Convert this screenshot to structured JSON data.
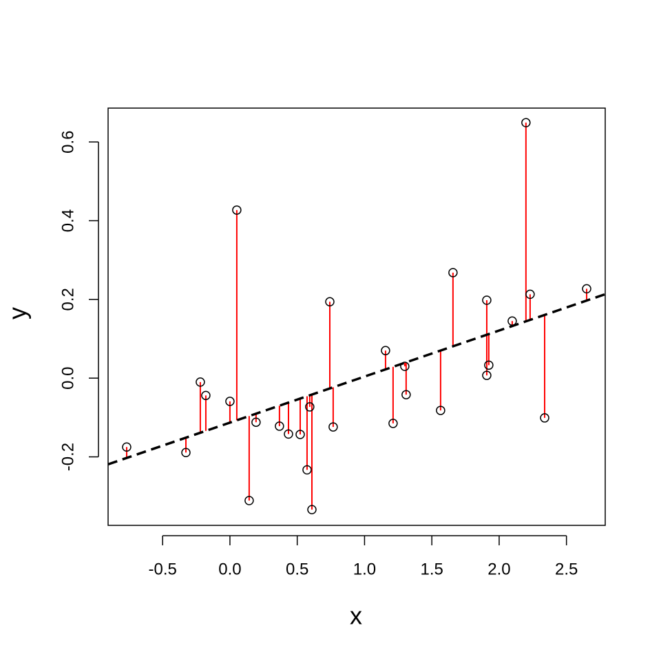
{
  "chart_data": {
    "type": "scatter",
    "x_label": "x",
    "y_label": "y",
    "x": [
      -0.767,
      -0.327,
      -0.22,
      -0.179,
      0.0,
      0.051,
      0.143,
      0.194,
      0.368,
      0.435,
      0.522,
      0.573,
      0.593,
      0.609,
      0.742,
      0.767,
      1.156,
      1.212,
      1.299,
      1.309,
      1.565,
      1.657,
      1.908,
      1.908,
      1.923,
      2.097,
      2.199,
      2.23,
      2.338,
      2.65
    ],
    "values": [
      -0.175,
      -0.189,
      -0.01,
      -0.044,
      -0.059,
      0.427,
      -0.311,
      -0.112,
      -0.122,
      -0.142,
      -0.143,
      -0.233,
      -0.073,
      -0.334,
      0.194,
      -0.124,
      0.07,
      -0.115,
      0.03,
      -0.042,
      -0.082,
      0.268,
      0.198,
      0.007,
      0.033,
      0.145,
      0.649,
      0.213,
      -0.101,
      0.227
    ],
    "color": "#000000",
    "fit": {
      "intercept": -0.113,
      "slope": 0.117,
      "color": "#000000",
      "dashed": true
    },
    "residual_color": "#ff0000",
    "xlim": [
      -0.905,
      2.788
    ],
    "ylim": [
      -0.374,
      0.686
    ],
    "xticks": [
      -0.5,
      {
        "value": 0,
        "label": "0.0"
      },
      0.5,
      {
        "value": 1,
        "label": "1.0"
      },
      1.5,
      {
        "value": 2,
        "label": "2.0"
      },
      2.5
    ],
    "yticks": [
      -0.2,
      {
        "value": 0,
        "label": "0.0"
      },
      0.2,
      0.4,
      0.6
    ]
  }
}
